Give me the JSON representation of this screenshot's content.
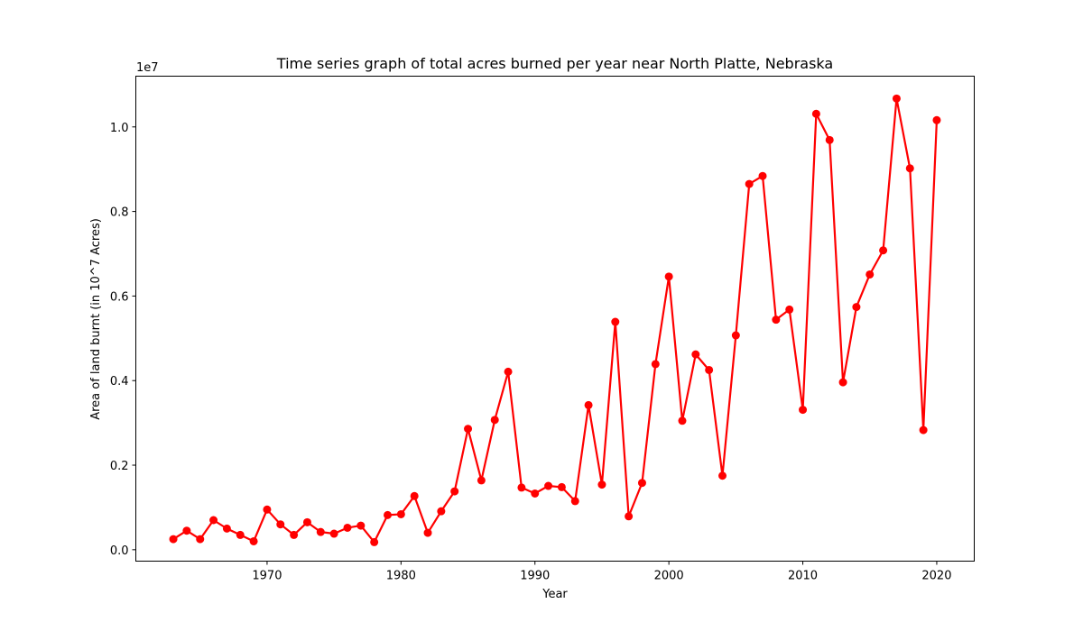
{
  "chart_data": {
    "type": "line",
    "title": "Time series graph of total acres burned per year near North Platte, Nebraska",
    "xlabel": "Year",
    "ylabel": "Area of land burnt (in 10^7 Acres)",
    "y_offset_label": "1e7",
    "xlim": [
      1960.2,
      2022.8
    ],
    "ylim": [
      -0.027,
      1.12
    ],
    "xticks": [
      1970,
      1980,
      1990,
      2000,
      2010,
      2020
    ],
    "xtick_labels": [
      "1970",
      "1980",
      "1990",
      "2000",
      "2010",
      "2020"
    ],
    "yticks": [
      0.0,
      0.2,
      0.4,
      0.6,
      0.8,
      1.0
    ],
    "ytick_labels": [
      "0.0",
      "0.2",
      "0.4",
      "0.6",
      "0.8",
      "1.0"
    ],
    "grid": false,
    "color": "#ff0000",
    "marker": "circle",
    "x": [
      1963,
      1964,
      1965,
      1966,
      1967,
      1968,
      1969,
      1970,
      1971,
      1972,
      1973,
      1974,
      1975,
      1976,
      1977,
      1978,
      1979,
      1980,
      1981,
      1982,
      1983,
      1984,
      1985,
      1986,
      1987,
      1988,
      1989,
      1990,
      1991,
      1992,
      1993,
      1994,
      1995,
      1996,
      1997,
      1998,
      1999,
      2000,
      2001,
      2002,
      2003,
      2004,
      2005,
      2006,
      2007,
      2008,
      2009,
      2010,
      2011,
      2012,
      2013,
      2014,
      2015,
      2016,
      2017,
      2018,
      2019,
      2020
    ],
    "y": [
      0.025,
      0.045,
      0.025,
      0.07,
      0.05,
      0.035,
      0.02,
      0.095,
      0.06,
      0.035,
      0.065,
      0.042,
      0.038,
      0.052,
      0.057,
      0.018,
      0.082,
      0.084,
      0.127,
      0.04,
      0.091,
      0.138,
      0.286,
      0.164,
      0.307,
      0.421,
      0.147,
      0.133,
      0.151,
      0.148,
      0.115,
      0.342,
      0.154,
      0.539,
      0.079,
      0.158,
      0.439,
      0.646,
      0.305,
      0.462,
      0.425,
      0.175,
      0.507,
      0.865,
      0.884,
      0.544,
      0.568,
      0.331,
      1.031,
      0.969,
      0.396,
      0.574,
      0.651,
      0.708,
      1.067,
      0.902,
      0.283,
      1.016
    ]
  }
}
